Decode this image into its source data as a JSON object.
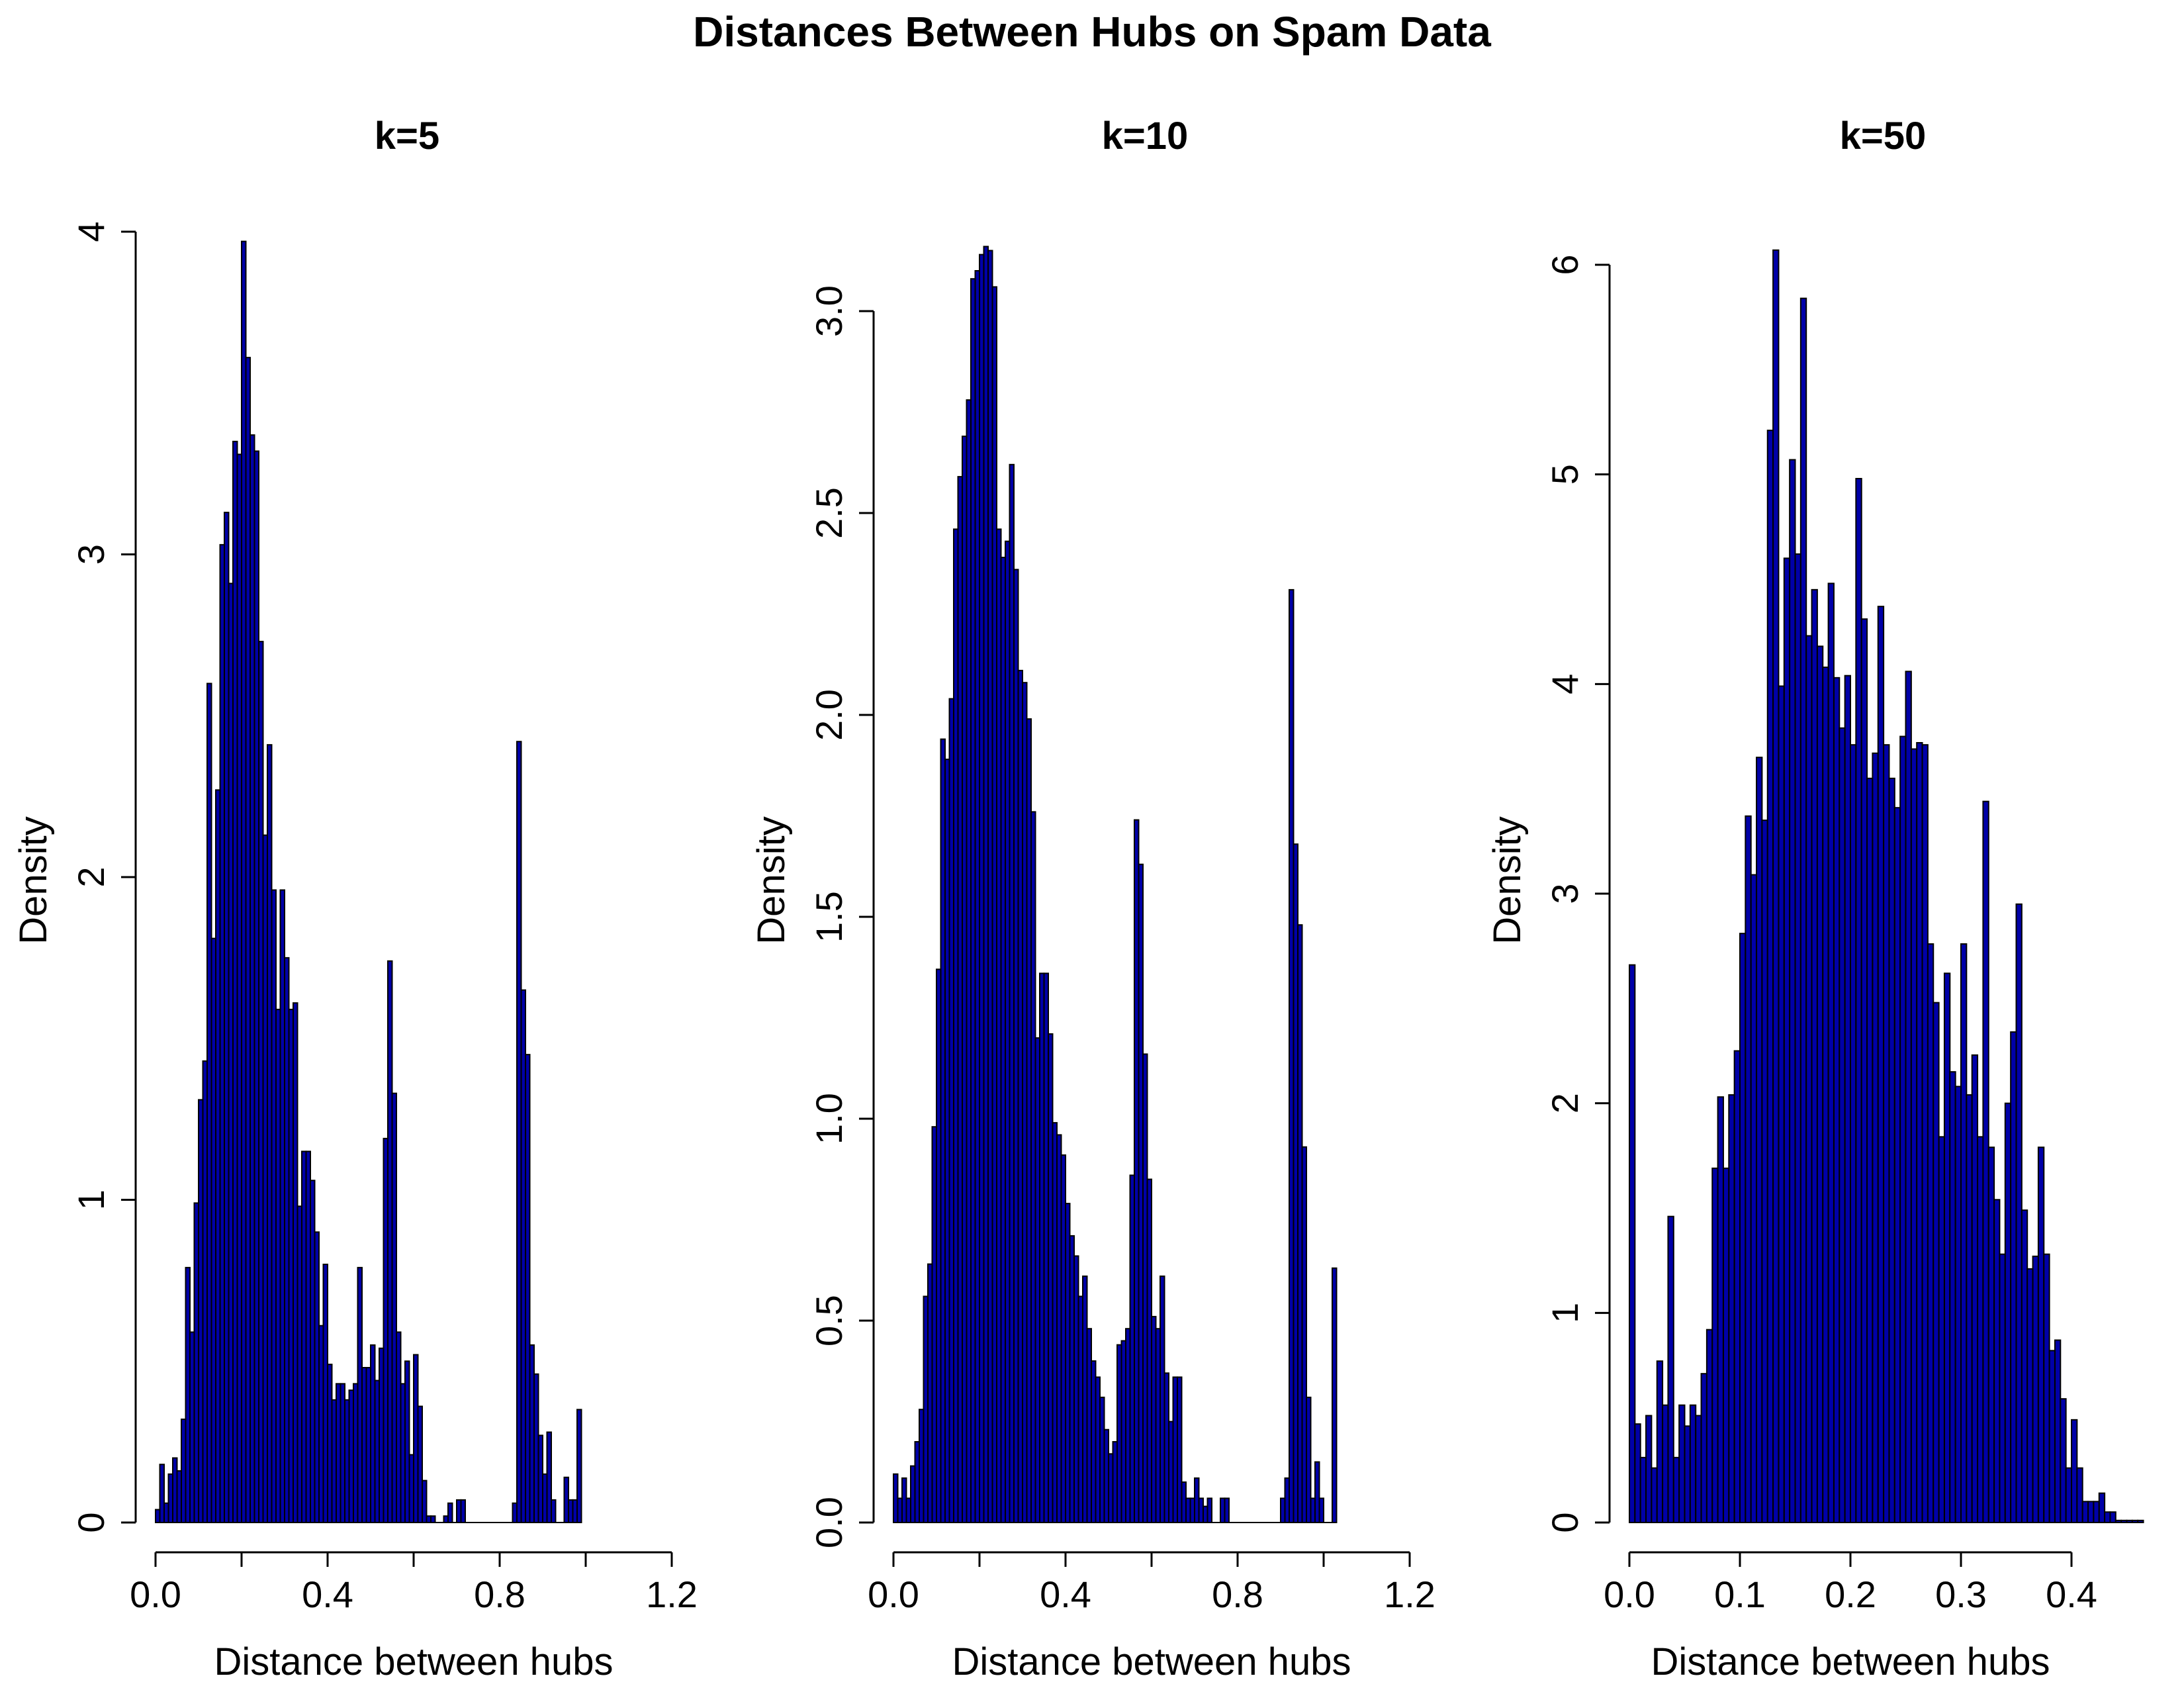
{
  "title": "Distances Between Hubs on Spam Data",
  "colors": {
    "bar_fill": "#0000A8",
    "bar_stroke": "#000000",
    "background": "#ffffff"
  },
  "chart_data": [
    {
      "type": "bar",
      "title": "k=5",
      "xlabel": "Distance between hubs",
      "ylabel": "Density",
      "xlim": [
        0,
        1.2
      ],
      "ylim": [
        0,
        4
      ],
      "xticks": [
        "0.0",
        "0.4",
        "0.8",
        "1.2"
      ],
      "yticks": [
        "0",
        "1",
        "2",
        "3",
        "4"
      ],
      "bin_width": 0.01,
      "bin_start": 0.0,
      "values": [
        0.04,
        0.18,
        0.06,
        0.15,
        0.2,
        0.16,
        0.32,
        0.79,
        0.59,
        0.99,
        1.31,
        1.43,
        2.6,
        1.81,
        2.27,
        3.03,
        3.13,
        2.91,
        3.35,
        3.31,
        3.97,
        3.61,
        3.37,
        3.32,
        2.73,
        2.13,
        2.41,
        1.96,
        1.59,
        1.96,
        1.75,
        1.59,
        1.61,
        0.98,
        1.15,
        1.15,
        1.06,
        0.9,
        0.61,
        0.8,
        0.49,
        0.38,
        0.43,
        0.43,
        0.38,
        0.41,
        0.43,
        0.79,
        0.48,
        0.48,
        0.55,
        0.44,
        0.54,
        1.19,
        1.74,
        1.33,
        0.59,
        0.43,
        0.5,
        0.21,
        0.52,
        0.36,
        0.13,
        0.02,
        0.02,
        0,
        0,
        0.02,
        0.06,
        0,
        0.07,
        0.07,
        0,
        0,
        0,
        0,
        0,
        0,
        0,
        0,
        0,
        0,
        0,
        0.06,
        2.42,
        1.65,
        1.45,
        0.55,
        0.46,
        0.27,
        0.15,
        0.28,
        0.07,
        0,
        0,
        0.14,
        0.07,
        0.07,
        0.35
      ]
    },
    {
      "type": "bar",
      "title": "k=10",
      "xlabel": "Distance between hubs",
      "ylabel": "Density",
      "xlim": [
        0,
        1.2
      ],
      "ylim": [
        0,
        3.0
      ],
      "xticks": [
        "0.0",
        "0.4",
        "0.8",
        "1.2"
      ],
      "yticks": [
        "0.0",
        "0.5",
        "1.0",
        "1.5",
        "2.0",
        "2.5",
        "3.0"
      ],
      "bin_width": 0.01,
      "bin_start": 0.0,
      "values": [
        0.12,
        0.06,
        0.11,
        0.06,
        0.14,
        0.2,
        0.28,
        0.56,
        0.64,
        0.98,
        1.37,
        1.94,
        1.89,
        2.04,
        2.46,
        2.59,
        2.69,
        2.78,
        3.08,
        3.1,
        3.14,
        3.16,
        3.15,
        3.06,
        2.46,
        2.39,
        2.43,
        2.62,
        2.36,
        2.11,
        2.08,
        1.99,
        1.76,
        1.2,
        1.36,
        1.36,
        1.21,
        0.99,
        0.96,
        0.91,
        0.79,
        0.71,
        0.66,
        0.56,
        0.61,
        0.48,
        0.4,
        0.36,
        0.31,
        0.23,
        0.17,
        0.2,
        0.44,
        0.45,
        0.48,
        0.86,
        1.74,
        1.63,
        1.16,
        0.85,
        0.51,
        0.48,
        0.61,
        0.37,
        0.25,
        0.36,
        0.36,
        0.1,
        0.06,
        0.06,
        0.11,
        0.06,
        0.04,
        0.06,
        0,
        0,
        0.06,
        0.06,
        0,
        0,
        0,
        0,
        0,
        0,
        0,
        0,
        0,
        0,
        0,
        0,
        0.06,
        0.11,
        2.31,
        1.68,
        1.48,
        0.93,
        0.31,
        0.06,
        0.15,
        0.06,
        0,
        0,
        0.63
      ]
    },
    {
      "type": "bar",
      "title": "k=50",
      "xlabel": "Distance between hubs",
      "ylabel": "Density",
      "xlim": [
        0,
        0.4
      ],
      "ylim": [
        0,
        6
      ],
      "xticks": [
        "0.0",
        "0.1",
        "0.2",
        "0.3",
        "0.4"
      ],
      "yticks": [
        "0",
        "1",
        "2",
        "3",
        "4",
        "5",
        "6"
      ],
      "bin_width": 0.005,
      "bin_start": 0.0,
      "values": [
        2.66,
        0.47,
        0.31,
        0.51,
        0.26,
        0.77,
        0.56,
        1.46,
        0.31,
        0.56,
        0.46,
        0.56,
        0.51,
        0.71,
        0.92,
        1.69,
        2.03,
        1.69,
        2.04,
        2.25,
        2.81,
        3.37,
        3.09,
        3.65,
        3.35,
        5.21,
        6.07,
        3.99,
        4.6,
        5.07,
        4.62,
        5.84,
        4.23,
        4.45,
        4.18,
        4.08,
        4.48,
        4.03,
        3.79,
        4.04,
        3.71,
        4.98,
        4.31,
        3.55,
        3.67,
        4.37,
        3.71,
        3.55,
        3.41,
        3.75,
        4.06,
        3.69,
        3.72,
        3.71,
        2.76,
        2.48,
        1.84,
        2.62,
        2.15,
        2.08,
        2.76,
        2.04,
        2.23,
        1.84,
        3.44,
        1.79,
        1.54,
        1.28,
        2.0,
        2.34,
        2.95,
        1.49,
        1.21,
        1.27,
        1.79,
        1.28,
        0.82,
        0.87,
        0.59,
        0.26,
        0.49,
        0.26,
        0.1,
        0.1,
        0.1,
        0.14,
        0.05,
        0.05,
        0.01,
        0.01,
        0.01,
        0.01,
        0.01
      ]
    }
  ]
}
